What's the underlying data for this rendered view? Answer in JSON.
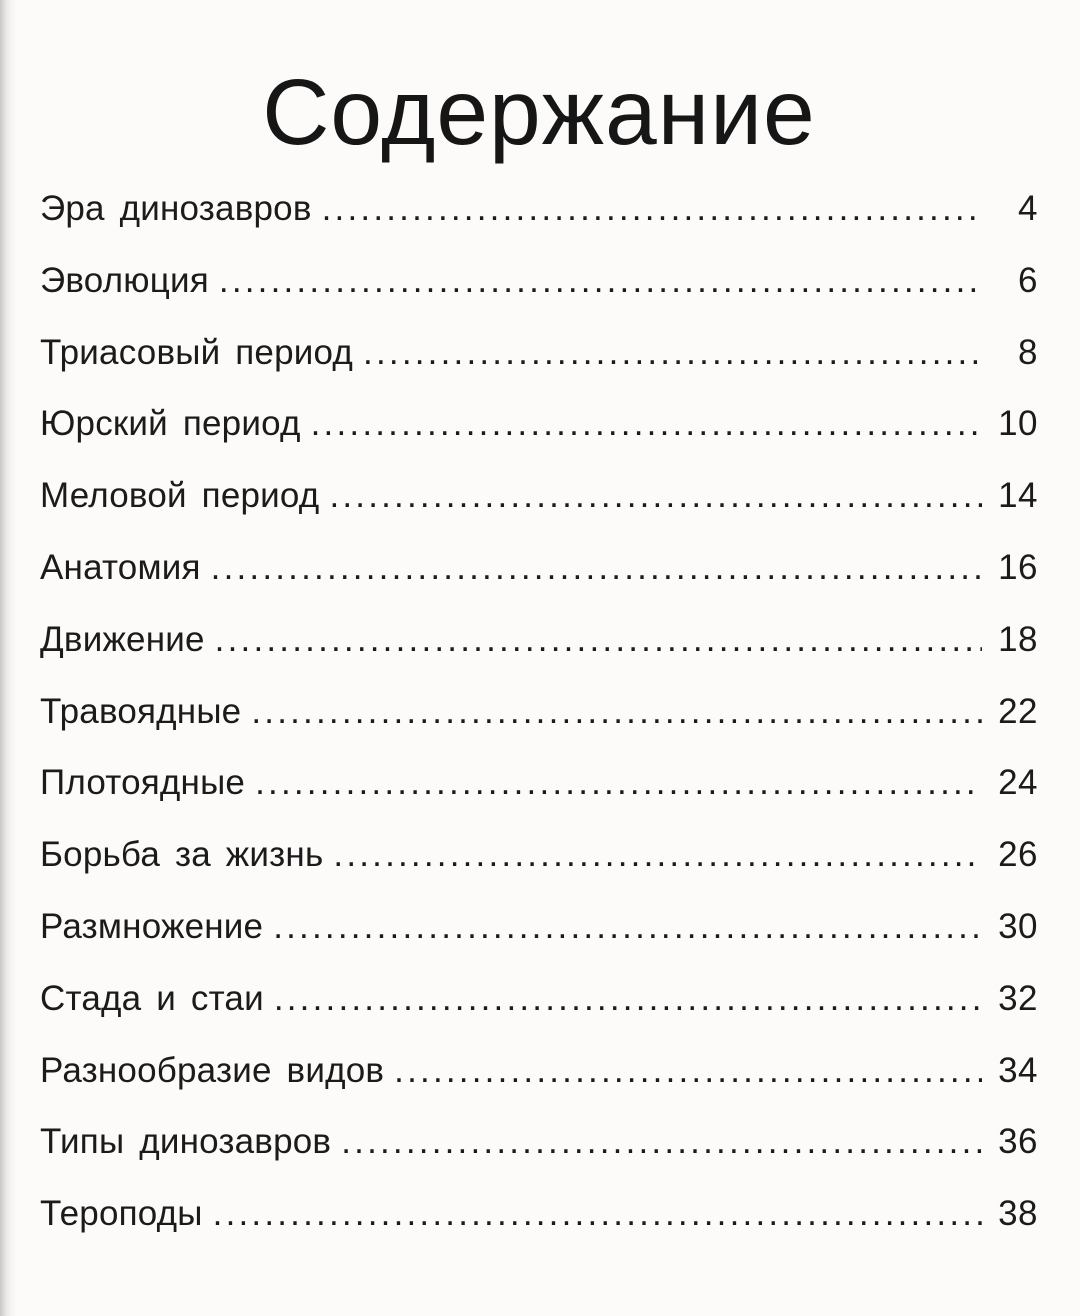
{
  "page": {
    "title": "Содержание"
  },
  "toc": {
    "entries": [
      {
        "label": "Эра динозавров",
        "page": "4"
      },
      {
        "label": "Эволюция",
        "page": "6"
      },
      {
        "label": "Триасовый период",
        "page": "8"
      },
      {
        "label": "Юрский период",
        "page": "10"
      },
      {
        "label": "Меловой период",
        "page": "14"
      },
      {
        "label": "Анатомия",
        "page": "16"
      },
      {
        "label": "Движение",
        "page": "18"
      },
      {
        "label": "Травоядные",
        "page": "22"
      },
      {
        "label": "Плотоядные",
        "page": "24"
      },
      {
        "label": "Борьба за жизнь",
        "page": "26"
      },
      {
        "label": "Размножение",
        "page": "30"
      },
      {
        "label": "Стада и стаи",
        "page": "32"
      },
      {
        "label": "Разнообразие видов",
        "page": "34"
      },
      {
        "label": "Типы динозавров",
        "page": "36"
      },
      {
        "label": "Тероподы",
        "page": "38"
      }
    ]
  }
}
